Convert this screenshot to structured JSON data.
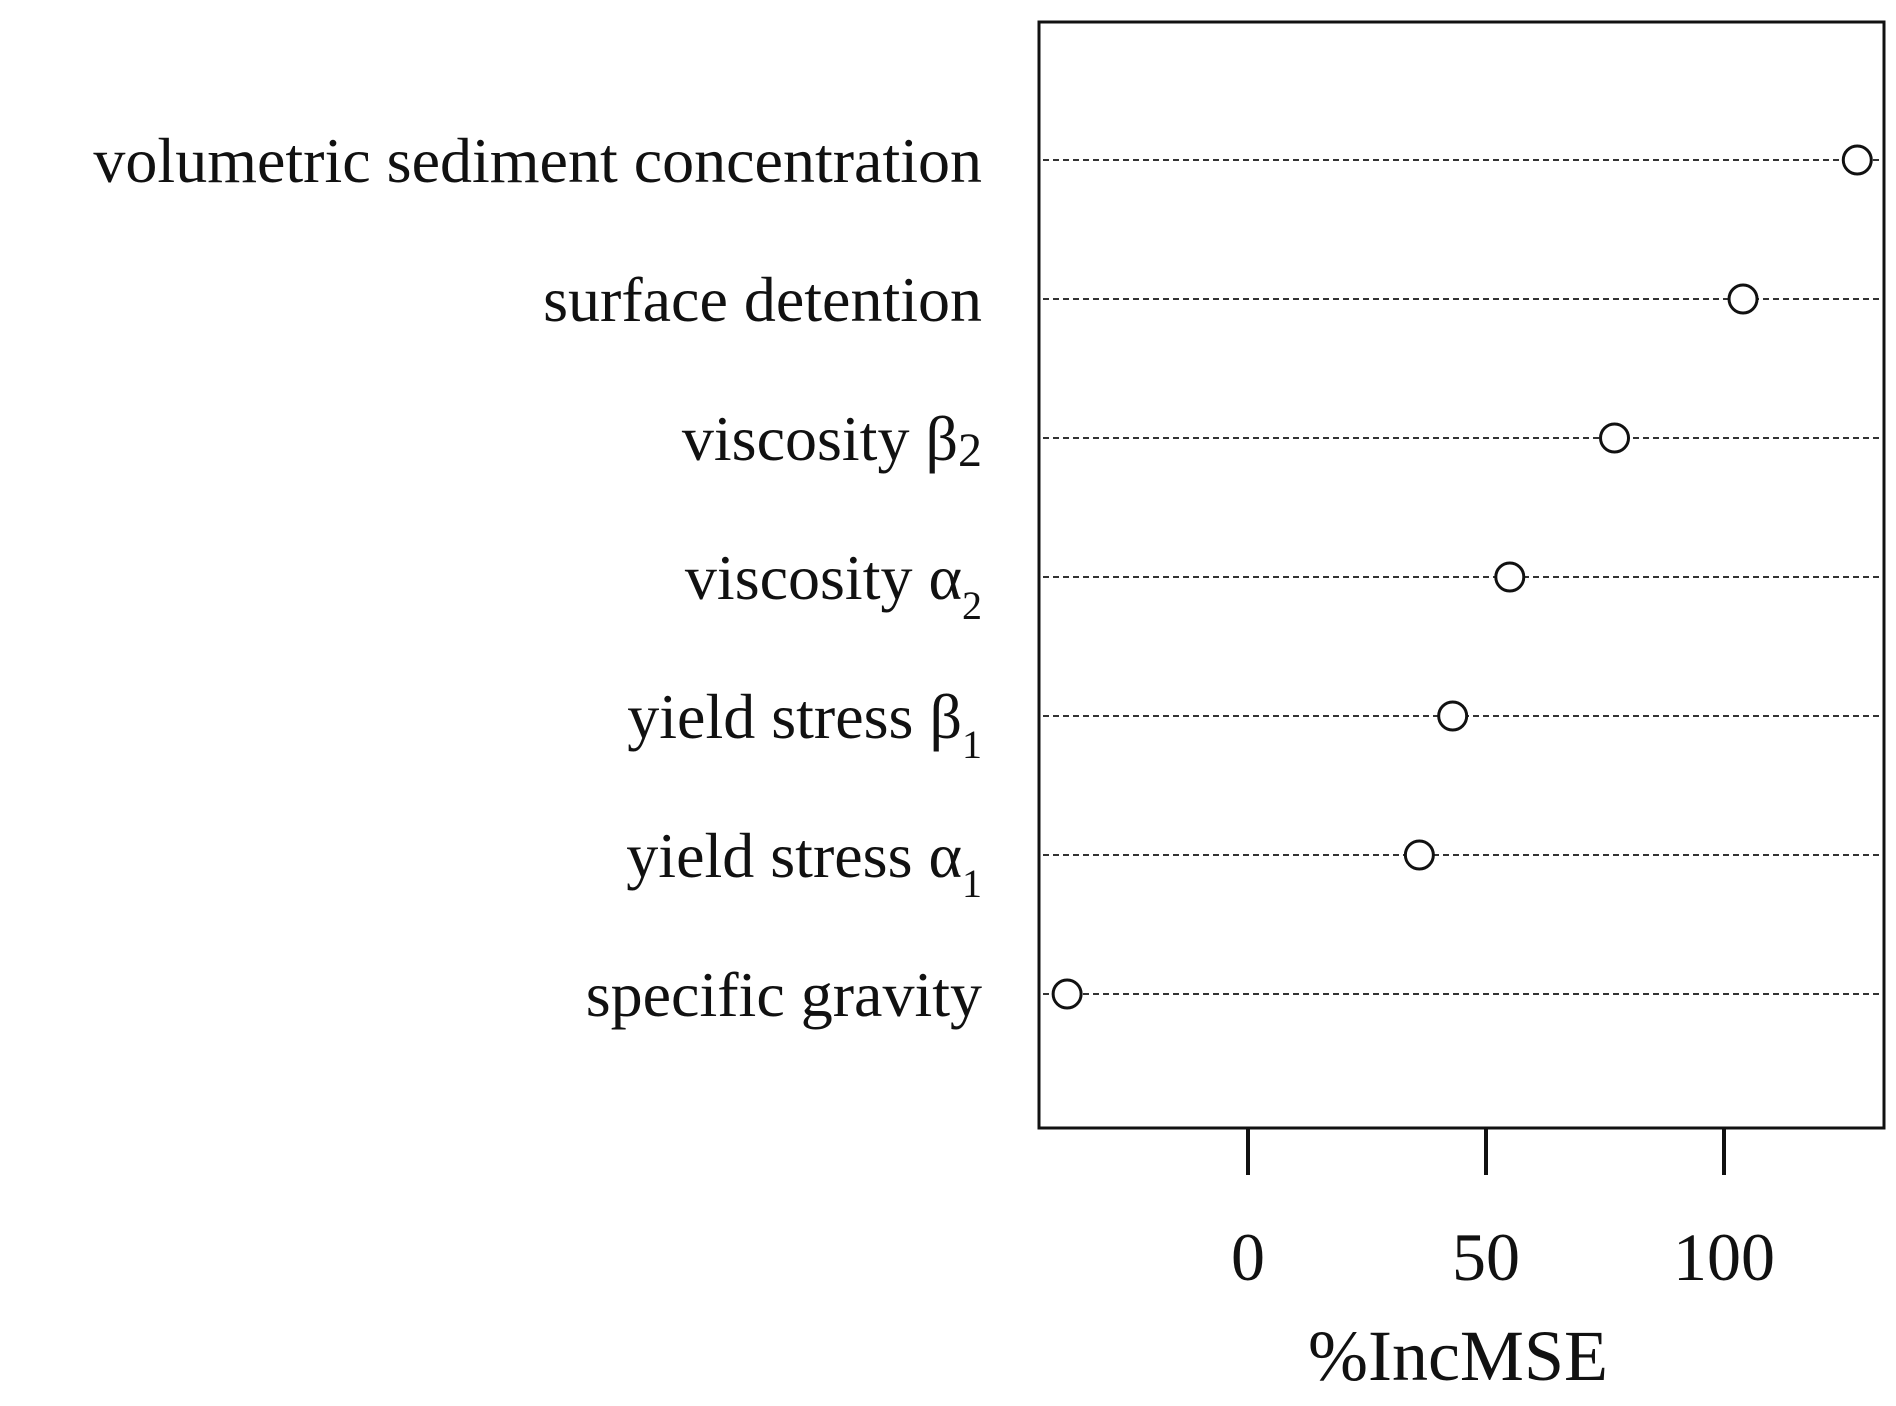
{
  "chart_data": {
    "type": "scatter",
    "variant": "dot-chart",
    "title": "",
    "xlabel": "%IncMSE",
    "ylabel": "",
    "xlim": [
      -44,
      135
    ],
    "xticks": [
      0,
      50,
      100
    ],
    "xtick_labels": [
      "0",
      "50",
      "100"
    ],
    "grid": "dashed horizontal guide line per variable",
    "legend": "none",
    "marker": "open circle",
    "colors": {
      "ink": "#111111",
      "guide": "#333333",
      "marker_fill": "#ffffff"
    },
    "points": [
      {
        "label": "volumetric sediment concentration",
        "base": "volumetric sediment concentration",
        "sub": "",
        "sub_style": "",
        "value": 128
      },
      {
        "label": "surface detention",
        "base": "surface detention",
        "sub": "",
        "sub_style": "",
        "value": 104
      },
      {
        "label": "viscosity β2",
        "base": "viscosity β",
        "sub": "2",
        "sub_style": "small",
        "value": 77
      },
      {
        "label": "viscosity α2",
        "base": "viscosity α",
        "sub": "2",
        "sub_style": "sub",
        "value": 55
      },
      {
        "label": "yield stress β1",
        "base": "yield stress β",
        "sub": "1",
        "sub_style": "sub",
        "value": 43
      },
      {
        "label": "yield stress α1",
        "base": "yield stress α",
        "sub": "1",
        "sub_style": "sub",
        "value": 36
      },
      {
        "label": "specific gravity",
        "base": "specific gravity",
        "sub": "",
        "sub_style": "",
        "value": -38
      }
    ]
  }
}
